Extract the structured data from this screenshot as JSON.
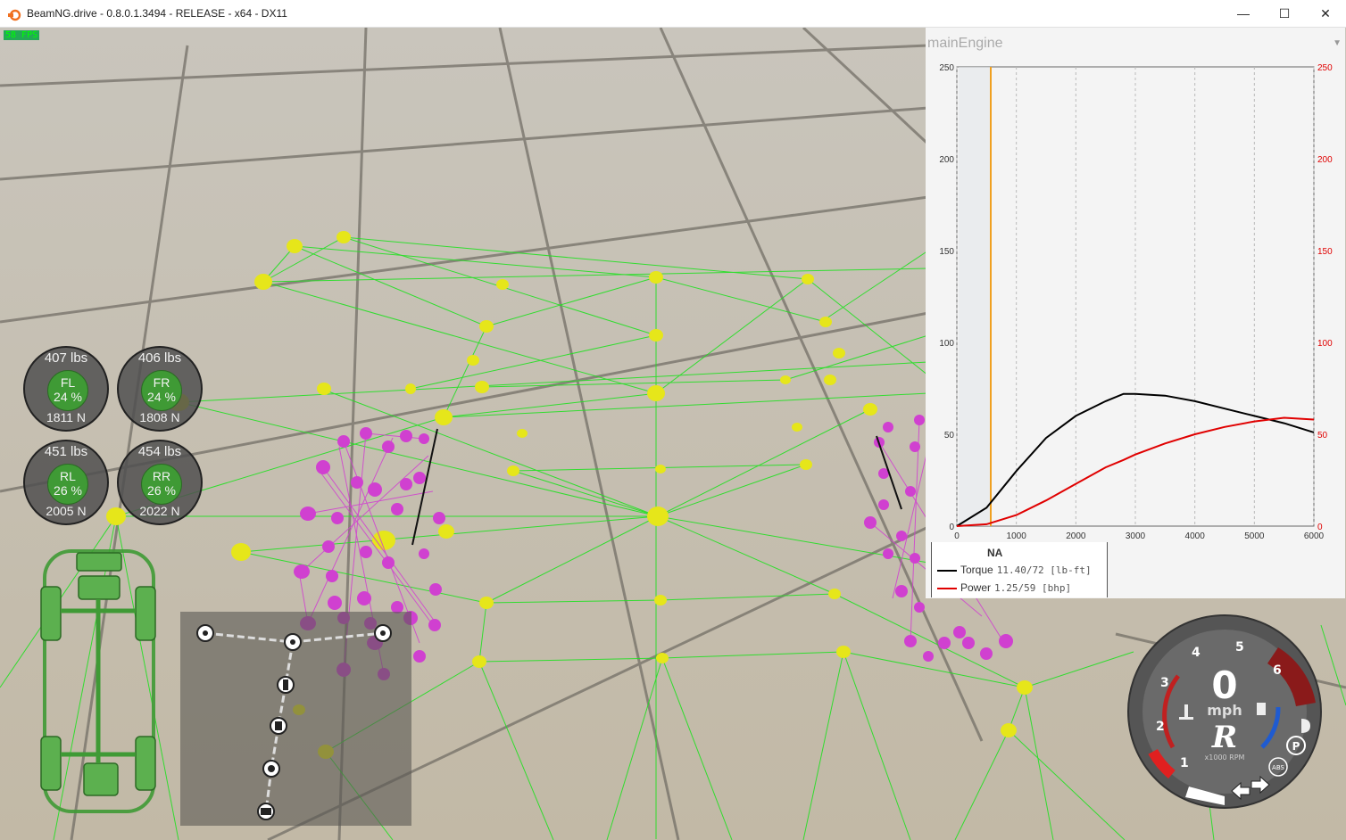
{
  "window": {
    "title": "BeamNG.drive - 0.8.0.1.3494 - RELEASE - x64 - DX11",
    "minimize_label": "—",
    "maximize_label": "☐",
    "close_label": "✕"
  },
  "hud": {
    "fps": "58 FPS"
  },
  "wheels": [
    {
      "id": "FL",
      "weight": "407  lbs",
      "percent": "24 %",
      "force": "1811  N"
    },
    {
      "id": "FR",
      "weight": "406  lbs",
      "percent": "24 %",
      "force": "1808  N"
    },
    {
      "id": "RL",
      "weight": "451  lbs",
      "percent": "26 %",
      "force": "2005  N"
    },
    {
      "id": "RR",
      "weight": "454  lbs",
      "percent": "26 %",
      "force": "2022  N"
    }
  ],
  "powertrain_icons": [
    "wheel-icon",
    "differential-icon",
    "wheel-icon",
    "clutch-icon",
    "gearbox-icon",
    "shaft-icon",
    "engine-icon"
  ],
  "engine_graph": {
    "title": "mainEngine",
    "legend": {
      "na_label": "NA",
      "torque_label": "Torque",
      "torque_value": "11.40/72 [lb-ft]",
      "power_label": "Power",
      "power_value": "1.25/59  [bhp]"
    },
    "colors": {
      "torque": "#000000",
      "power": "#e00000",
      "rpm_marker": "#f0a020"
    },
    "current_rpm": 570
  },
  "chart_data": {
    "type": "line",
    "title": "mainEngine",
    "x": [
      0,
      500,
      1000,
      1500,
      2000,
      2500,
      2800,
      3000,
      3500,
      4000,
      4500,
      5000,
      5500,
      6000
    ],
    "xticks": [
      "0",
      "1000",
      "2000",
      "3000",
      "4000",
      "5000",
      "6000"
    ],
    "yticks_left": [
      "0",
      "50",
      "100",
      "150",
      "200",
      "250"
    ],
    "yticks_right": [
      "0",
      "50",
      "100",
      "150",
      "200",
      "250"
    ],
    "xlim": [
      0,
      6000
    ],
    "ylim": [
      0,
      250
    ],
    "series": [
      {
        "name": "Torque",
        "values": [
          0,
          10,
          30,
          48,
          60,
          68,
          72,
          72,
          71,
          68,
          64,
          60,
          56,
          51
        ]
      },
      {
        "name": "Power",
        "values": [
          0,
          1,
          6,
          14,
          23,
          32,
          36,
          39,
          45,
          50,
          54,
          57,
          59,
          58
        ]
      }
    ]
  },
  "speedometer": {
    "speed": "0",
    "unit": "mph",
    "gear": "R",
    "rpm_unit": "x1000 RPM",
    "ticks": [
      "1",
      "2",
      "3",
      "4",
      "5",
      "6"
    ],
    "rpm_fraction": 0.08
  }
}
